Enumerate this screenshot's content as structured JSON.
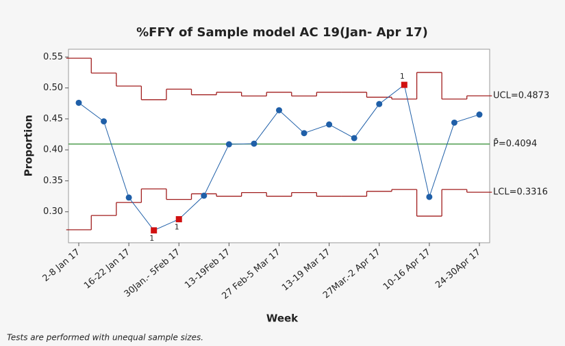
{
  "chart_data": {
    "type": "p-chart",
    "title": "%FFY of Sample model AC 19(Jan- Apr 17)",
    "x_label": "Week",
    "y_label": "Proportion",
    "categories": [
      "2-8 Jan 17",
      null,
      "16-22 Jan 17",
      null,
      "30Jan.- 5Feb 17",
      null,
      "13-19Feb 17",
      null,
      "27 Feb-5 Mar 17",
      null,
      "13-19 Mar 17",
      null,
      "27Mar.-2 Apr 17",
      null,
      "10-16 Apr 17",
      null,
      "24-30Apr 17"
    ],
    "series": [
      {
        "name": "Proportion",
        "color": "#1f5fa8",
        "values": [
          0.476,
          0.446,
          0.323,
          0.27,
          0.288,
          0.326,
          0.409,
          0.41,
          0.464,
          0.427,
          0.441,
          0.419,
          0.474,
          0.505,
          0.324,
          0.444,
          0.457
        ]
      }
    ],
    "flagged": [
      3,
      4,
      13
    ],
    "flag_color": "#d01010",
    "flag_label": "1",
    "limit_color": "#a01c1c",
    "center_color": "#2e8b2e",
    "ucl": [
      0.548,
      0.524,
      0.503,
      0.481,
      0.498,
      0.489,
      0.493,
      0.487,
      0.493,
      0.487,
      0.493,
      0.493,
      0.485,
      0.482,
      0.525,
      0.482,
      0.4873
    ],
    "lcl": [
      0.271,
      0.294,
      0.315,
      0.337,
      0.32,
      0.329,
      0.325,
      0.331,
      0.325,
      0.331,
      0.325,
      0.325,
      0.333,
      0.336,
      0.293,
      0.336,
      0.3316
    ],
    "center": 0.4094,
    "ucl_label": "UCL=0.4873",
    "center_label": "P̄=0.4094",
    "lcl_label": "LCL=0.3316",
    "ylim": [
      0.25,
      0.5625
    ],
    "yticks": [
      {
        "value": 0.3,
        "label": "0.30"
      },
      0.35,
      {
        "value": 0.4,
        "label": "0.40"
      },
      0.45,
      {
        "value": 0.5,
        "label": "0.50"
      },
      0.55
    ],
    "footnote": "Tests are performed with unequal sample sizes."
  }
}
